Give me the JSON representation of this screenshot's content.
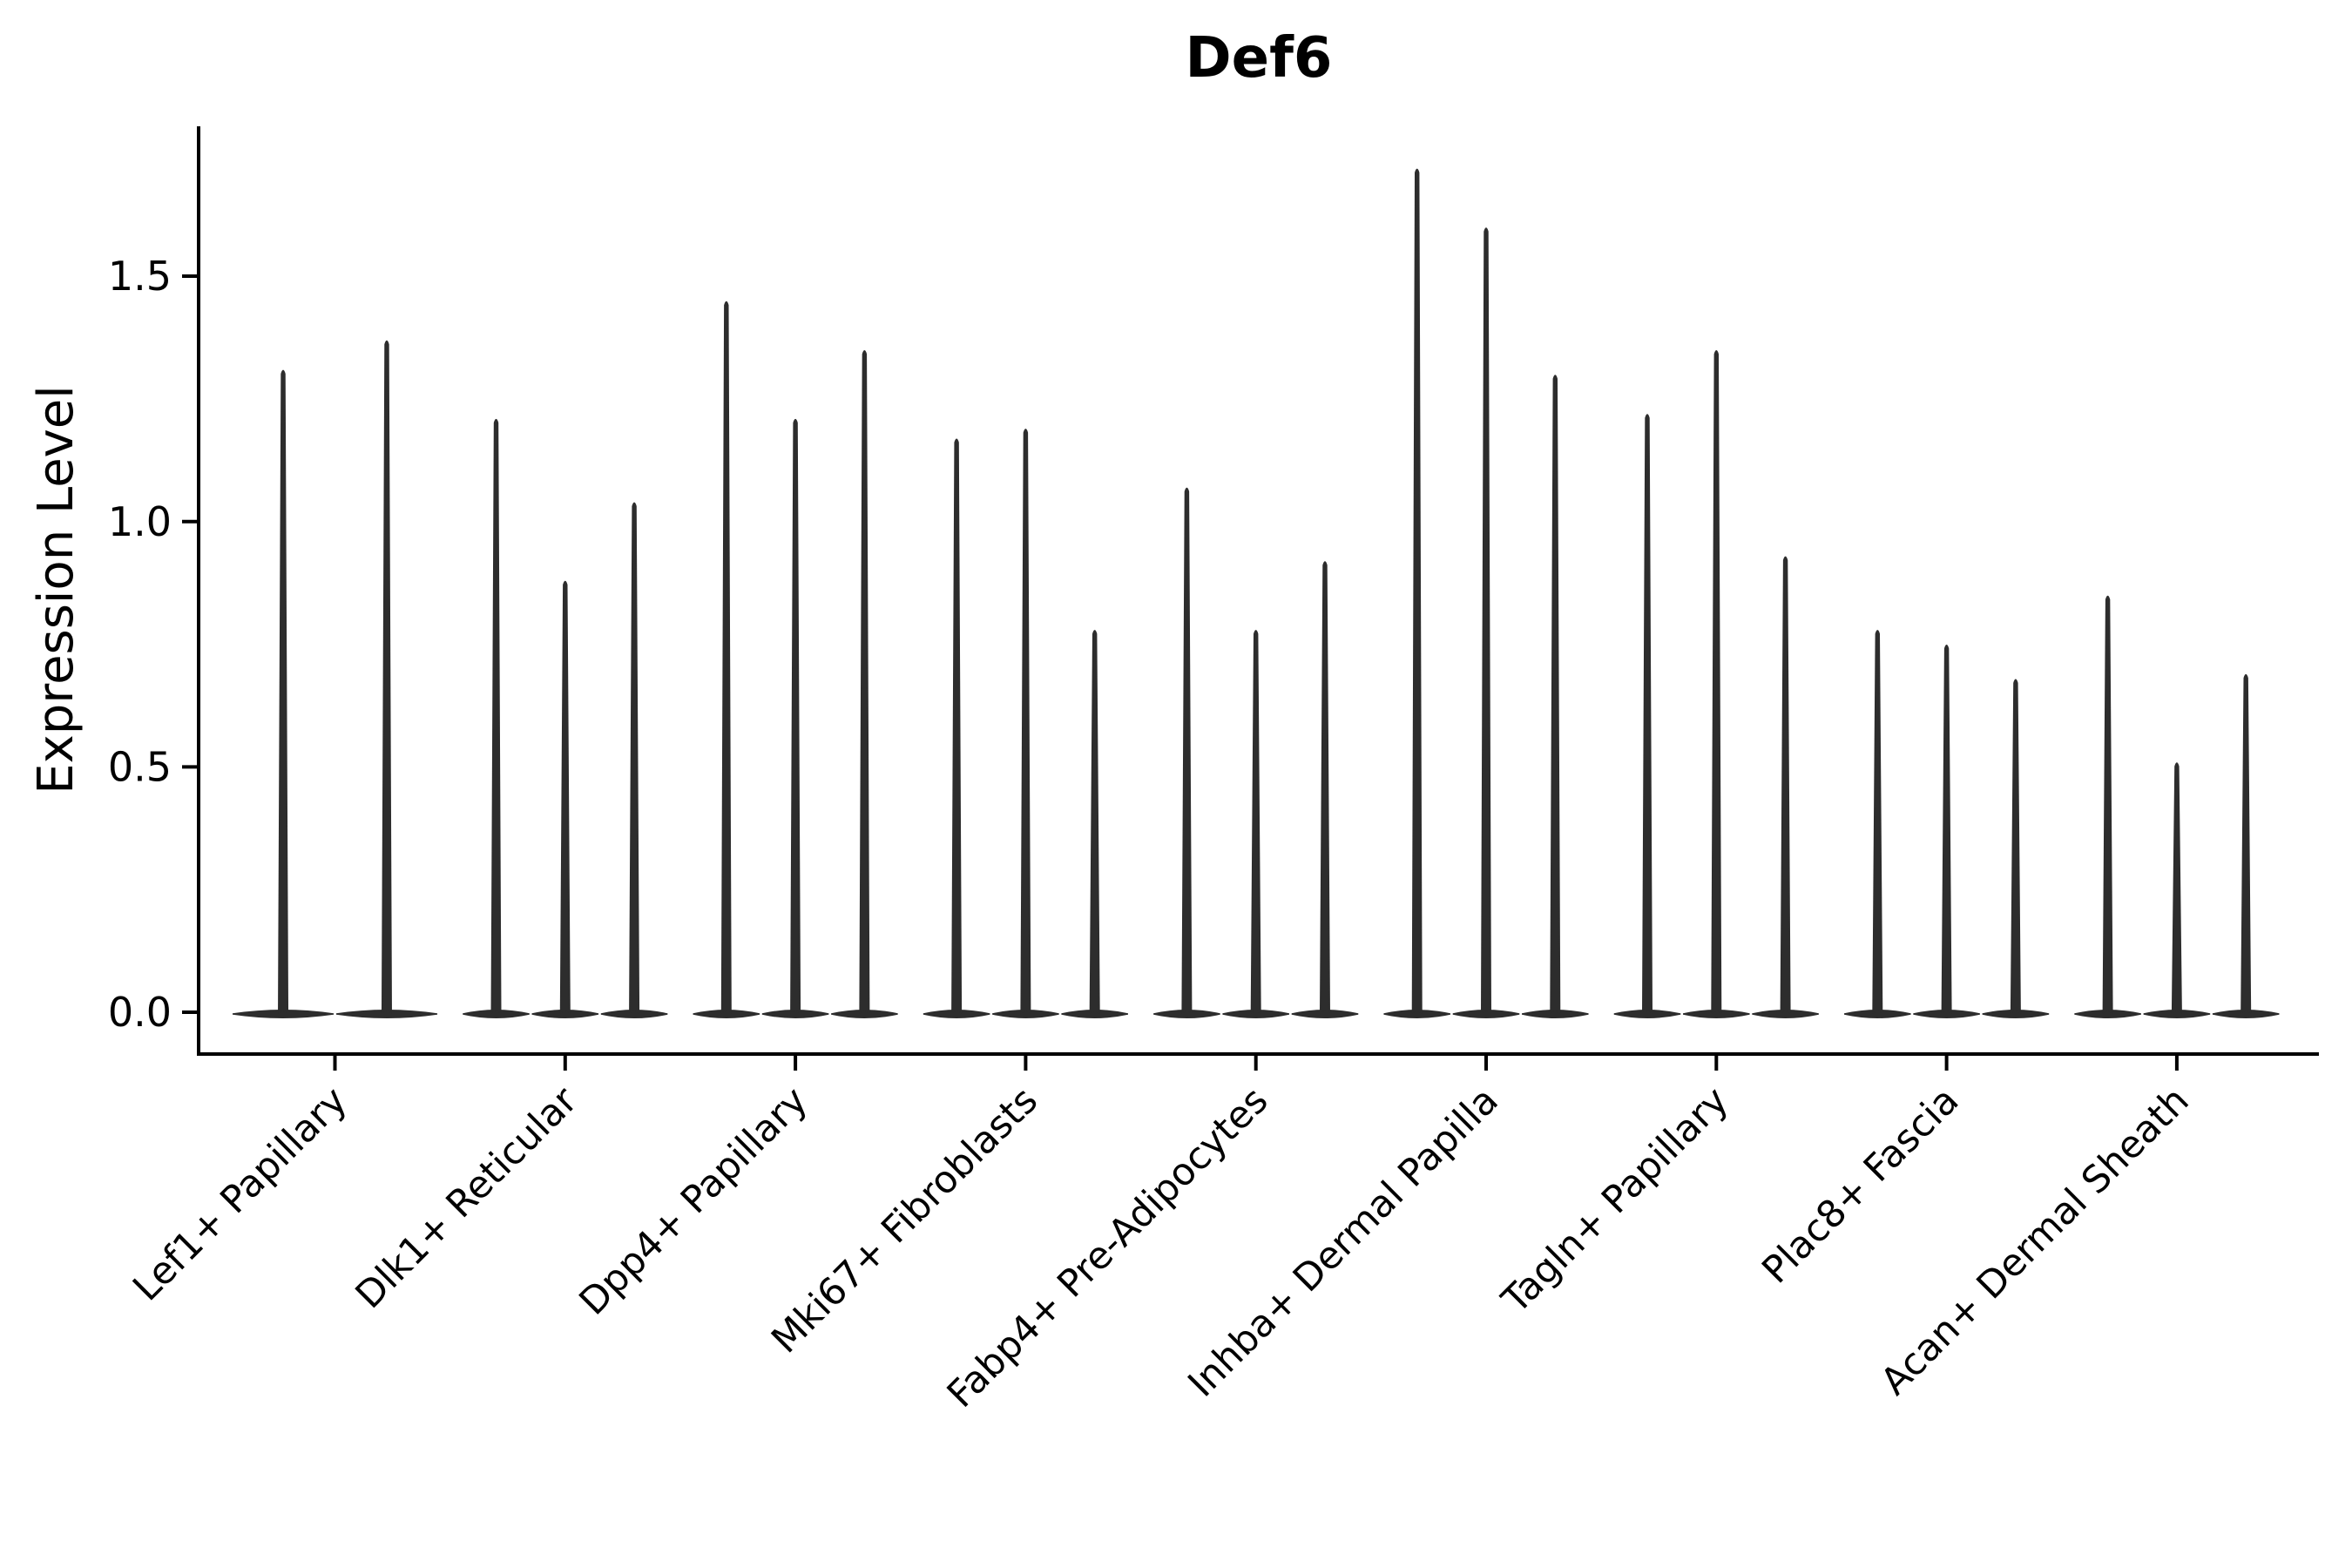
{
  "title": "Def6",
  "y_axis": {
    "label": "Expression Level",
    "tick_labels": [
      "0.0",
      "0.5",
      "1.0",
      "1.5"
    ]
  },
  "colors": {
    "violin": "#2d2d2d",
    "axis": "#000000",
    "text": "#000000",
    "background": "#ffffff"
  },
  "chart_data": {
    "type": "violin",
    "title": "Def6",
    "xlabel": "",
    "ylabel": "Expression Level",
    "ylim": [
      0,
      1.8
    ],
    "yticks": [
      0.0,
      0.5,
      1.0,
      1.5
    ],
    "ytick_labels": [
      "0.0",
      "0.5",
      "1.0",
      "1.5"
    ],
    "grid": false,
    "legend": "none",
    "baseline_value": 0.0,
    "description": "Narrow spike-shaped violins (expression mostly 0 with thin tails up to a max value); violins are dodged within each category; 2 violins in the first category, 3 in all others.",
    "categories": [
      "Lef1+ Papillary",
      "Dlk1+ Reticular",
      "Dpp4+ Papillary",
      "Mki67+ Fibroblasts",
      "Fabp4+ Pre-Adipocytes",
      "Inhba+ Dermal Papilla",
      "Tagln+ Papillary",
      "Plac8+ Fascia",
      "Acan+ Dermal Sheath"
    ],
    "groups": [
      {
        "category": "Lef1+ Papillary",
        "violin_max_values": [
          1.31,
          1.37
        ]
      },
      {
        "category": "Dlk1+ Reticular",
        "violin_max_values": [
          1.21,
          0.88,
          1.04
        ]
      },
      {
        "category": "Dpp4+ Papillary",
        "violin_max_values": [
          1.45,
          1.21,
          1.35
        ]
      },
      {
        "category": "Mki67+ Fibroblasts",
        "violin_max_values": [
          1.17,
          1.19,
          0.78
        ]
      },
      {
        "category": "Fabp4+ Pre-Adipocytes",
        "violin_max_values": [
          1.07,
          0.78,
          0.92
        ]
      },
      {
        "category": "Inhba+ Dermal Papilla",
        "violin_max_values": [
          1.72,
          1.6,
          1.3
        ]
      },
      {
        "category": "Tagln+ Papillary",
        "violin_max_values": [
          1.22,
          1.35,
          0.93
        ]
      },
      {
        "category": "Plac8+ Fascia",
        "violin_max_values": [
          0.78,
          0.75,
          0.68
        ]
      },
      {
        "category": "Acan+ Dermal Sheath",
        "violin_max_values": [
          0.85,
          0.51,
          0.69
        ]
      }
    ]
  }
}
